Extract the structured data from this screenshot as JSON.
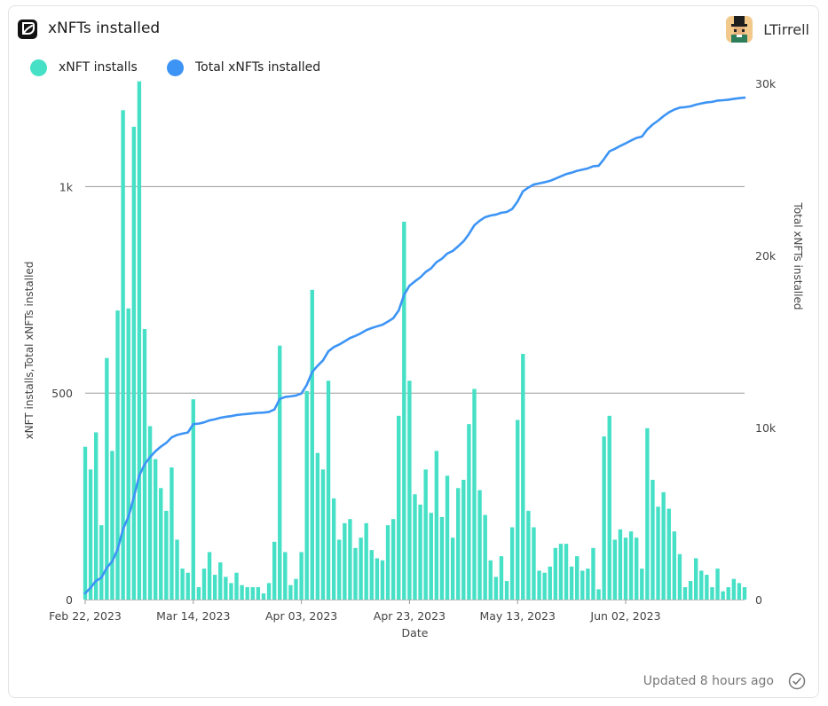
{
  "card": {
    "title": "xNFTs installed",
    "user_name": "LTirrell",
    "footer_text": "Updated 8 hours ago",
    "logo_icon": "xnft-logo-icon",
    "avatar_icon": "pixel-avatar-icon",
    "check_icon": "check-circle-icon"
  },
  "colors": {
    "bars": "#46e0c6",
    "line": "#3d94f5",
    "gridline": "#9a9a9a",
    "axis_text": "#444444"
  },
  "chart_data": {
    "type": "bar",
    "xlabel": "Date",
    "ylabel_left": "xNFT installs,Total xNFTs installed",
    "ylabel_right": "Total xNFTs installed",
    "x_ticks": [
      "Feb 22, 2023",
      "Mar 14, 2023",
      "Apr 03, 2023",
      "Apr 23, 2023",
      "May 13, 2023",
      "Jun 02, 2023"
    ],
    "left_ticks": [
      "0",
      "500",
      "1k"
    ],
    "right_ticks": [
      "0",
      "10k",
      "20k",
      "30k"
    ],
    "left_ylim": [
      0,
      1250
    ],
    "right_ylim": [
      0,
      30000
    ],
    "x_start": "2023-02-22",
    "legend_position": "top-left",
    "gridlines": [
      500,
      1000
    ],
    "series": [
      {
        "name": "xNFT installs",
        "axis": "left",
        "kind": "bar",
        "values": [
          370,
          315,
          405,
          180,
          585,
          360,
          700,
          1185,
          705,
          1145,
          1255,
          655,
          420,
          340,
          270,
          215,
          320,
          145,
          75,
          65,
          485,
          30,
          75,
          115,
          60,
          90,
          55,
          40,
          65,
          35,
          30,
          30,
          30,
          15,
          40,
          140,
          615,
          115,
          35,
          50,
          115,
          505,
          750,
          355,
          315,
          530,
          245,
          145,
          185,
          195,
          125,
          150,
          185,
          120,
          100,
          95,
          180,
          195,
          445,
          915,
          530,
          255,
          230,
          315,
          210,
          360,
          200,
          300,
          150,
          270,
          290,
          425,
          510,
          265,
          205,
          95,
          55,
          105,
          45,
          175,
          435,
          595,
          215,
          175,
          70,
          65,
          80,
          125,
          135,
          135,
          80,
          105,
          70,
          75,
          125,
          25,
          395,
          445,
          145,
          170,
          150,
          165,
          150,
          75,
          415,
          290,
          225,
          260,
          220,
          165,
          110,
          30,
          45,
          100,
          70,
          60,
          30,
          75,
          20,
          30,
          50,
          40,
          30
        ]
      },
      {
        "name": "Total xNFTs installed",
        "axis": "right",
        "kind": "line",
        "values": [
          370,
          685,
          1090,
          1270,
          1855,
          2215,
          2915,
          4100,
          4805,
          5950,
          7205,
          7860,
          8280,
          8620,
          8890,
          9105,
          9425,
          9570,
          9645,
          9710,
          10195,
          10225,
          10300,
          10415,
          10475,
          10565,
          10620,
          10660,
          10725,
          10760,
          10790,
          10820,
          10850,
          10865,
          10905,
          11045,
          11660,
          11775,
          11810,
          11860,
          11975,
          12480,
          13230,
          13585,
          13900,
          14430,
          14675,
          14820,
          15005,
          15200,
          15325,
          15475,
          15660,
          15780,
          15880,
          15975,
          16155,
          16350,
          16795,
          17710,
          18240,
          18495,
          18725,
          19040,
          19250,
          19610,
          19810,
          20110,
          20260,
          20530,
          20820,
          21245,
          21755,
          22020,
          22225,
          22320,
          22375,
          22480,
          22525,
          22700,
          23135,
          23730,
          23945,
          24120,
          24190,
          24255,
          24335,
          24460,
          24595,
          24730,
          24810,
          24915,
          24985,
          25060,
          25185,
          25210,
          25605,
          26050,
          26195,
          26365,
          26515,
          26680,
          26830,
          26905,
          27320,
          27610,
          27835,
          28095,
          28315,
          28480,
          28590,
          28620,
          28665,
          28765,
          28835,
          28895,
          28925,
          29000,
          29020,
          29050,
          29100,
          29140,
          29170
        ]
      }
    ]
  }
}
